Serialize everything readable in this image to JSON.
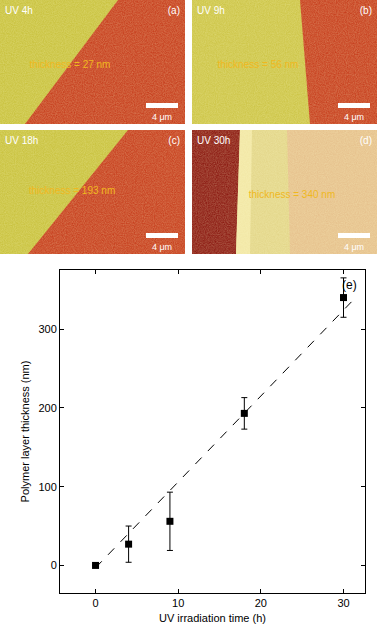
{
  "panels": [
    {
      "tag": "(a)",
      "label": "UV 4h",
      "annotation": "thickness = 27 nm",
      "scale_bar": "4 μm"
    },
    {
      "tag": "(b)",
      "label": "UV 9h",
      "annotation": "thickness = 56 nm",
      "scale_bar": "4 μm"
    },
    {
      "tag": "(c)",
      "label": "UV 18h",
      "annotation": "thickness = 193 nm",
      "scale_bar": "4 μm"
    },
    {
      "tag": "(d)",
      "label": "UV 30h",
      "annotation": "thickness = 340 nm",
      "scale_bar": "4 μm"
    }
  ],
  "chart_data": {
    "type": "scatter",
    "label": "(e)",
    "x": [
      0,
      4,
      9,
      18,
      30
    ],
    "values": [
      0,
      27,
      56,
      193,
      340
    ],
    "error": [
      0,
      23,
      37,
      20,
      25
    ],
    "fit": {
      "x": [
        0,
        31
      ],
      "values": [
        -3,
        335
      ],
      "line_style": "dash"
    },
    "x_label": "UV irradiation time (h)",
    "y_label": "Polymer layer thickness (nm)",
    "xlim": [
      -4.3,
      32.6
    ],
    "ylim": [
      -35,
      375
    ],
    "xticks": [
      0,
      10,
      20,
      30
    ],
    "yticks": [
      0,
      100,
      200,
      300
    ],
    "marker": "square",
    "color": "#000000",
    "grid": false
  }
}
